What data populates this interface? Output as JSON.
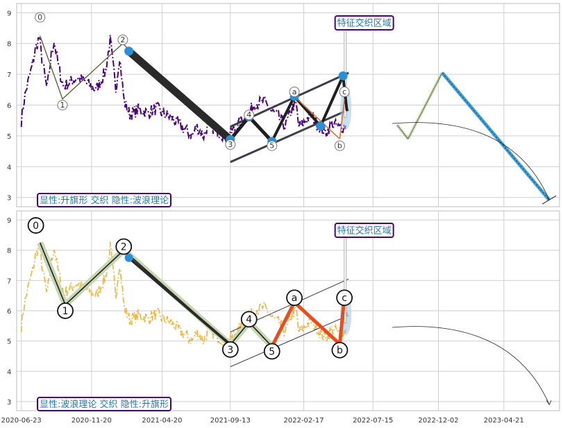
{
  "chart_data": [
    {
      "type": "line",
      "ylim": [
        2.7,
        9.3
      ],
      "yticks": [
        3,
        4,
        5,
        6,
        7,
        8,
        9
      ],
      "info_label": "显性:升旗形 交织 隐性:波浪理论",
      "feature_label": "特征交织区域",
      "colors": {
        "price": "#4b0082",
        "label_border": "#4b0082",
        "label_text": "#1f77b4"
      },
      "wave_labels": [
        {
          "text": "0",
          "x": "2020-08-02",
          "y": 8.85
        },
        {
          "text": "1",
          "x": "2020-09-19",
          "y": 6.0
        },
        {
          "text": "2",
          "x": "2021-01-26",
          "y": 8.12
        },
        {
          "text": "3",
          "x": "2021-09-13",
          "y": 4.72
        },
        {
          "text": "4",
          "x": "2021-10-23",
          "y": 5.68
        },
        {
          "text": "5",
          "x": "2021-12-11",
          "y": 4.68
        },
        {
          "text": "a",
          "x": "2022-01-28",
          "y": 6.43
        },
        {
          "text": "b",
          "x": "2022-05-05",
          "y": 4.68
        },
        {
          "text": "c",
          "x": "2022-05-15",
          "y": 6.43
        }
      ],
      "wave_path": [
        {
          "x": "2021-02-08",
          "y": 7.75
        },
        {
          "x": "2021-09-13",
          "y": 4.88
        },
        {
          "x": "2021-10-23",
          "y": 5.62
        },
        {
          "x": "2021-12-11",
          "y": 4.82
        },
        {
          "x": "2022-01-28",
          "y": 6.28
        },
        {
          "x": "2022-03-25",
          "y": 5.32
        },
        {
          "x": "2022-05-12",
          "y": 6.95
        },
        {
          "x": "2022-05-20",
          "y": 5.85
        }
      ],
      "projection": [
        {
          "x": "2022-09-05",
          "y": 5.35
        },
        {
          "x": "2022-09-28",
          "y": 4.9
        },
        {
          "x": "2022-12-10",
          "y": 7.05
        },
        {
          "x": "2023-07-27",
          "y": 2.92
        }
      ]
    },
    {
      "type": "line",
      "ylim": [
        2.7,
        9.3
      ],
      "yticks": [
        3,
        4,
        5,
        6,
        7,
        8,
        9
      ],
      "info_label": "显性:波浪理论 交织 隐性:升旗形",
      "feature_label": "特征交织区域",
      "colors": {
        "price": "#f0b43a",
        "label_border": "#4b0082",
        "label_text": "#1f77b4"
      },
      "wave_labels": [
        {
          "text": "0",
          "x": "2020-07-24",
          "y": 8.82
        },
        {
          "text": "1",
          "x": "2020-09-25",
          "y": 6.0
        },
        {
          "text": "2",
          "x": "2021-01-28",
          "y": 8.12
        },
        {
          "text": "3",
          "x": "2021-09-13",
          "y": 4.72
        },
        {
          "text": "4",
          "x": "2021-10-23",
          "y": 5.72
        },
        {
          "text": "5",
          "x": "2021-12-11",
          "y": 4.66
        },
        {
          "text": "a",
          "x": "2022-01-28",
          "y": 6.43
        },
        {
          "text": "b",
          "x": "2022-05-05",
          "y": 4.7
        },
        {
          "text": "c",
          "x": "2022-05-15",
          "y": 6.43
        }
      ]
    }
  ],
  "x_ticks": [
    "2020-06-23",
    "2020-11-20",
    "2021-04-20",
    "2021-09-13",
    "2022-02-17",
    "2022-07-15",
    "2022-12-02",
    "2023-04-21"
  ]
}
